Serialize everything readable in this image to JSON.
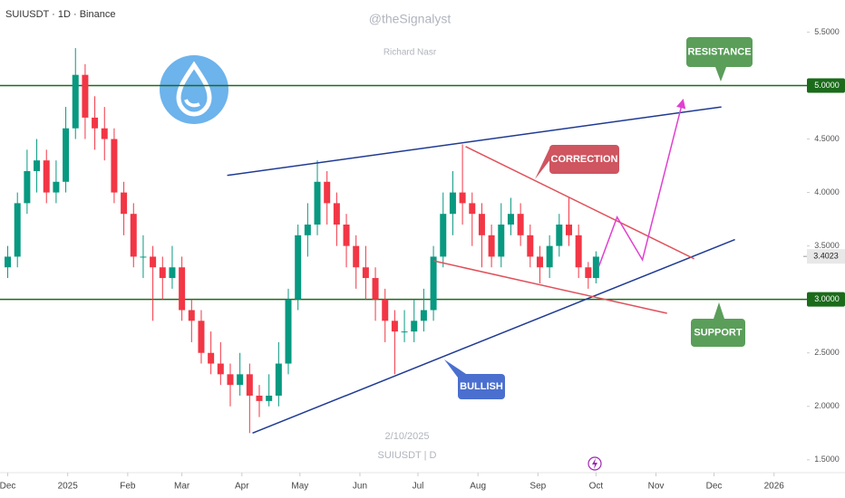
{
  "chart_data": {
    "type": "candlestick",
    "title": "SUIUSDT · 1D · Binance",
    "watermark": {
      "author": "@theSignalyst",
      "name": "Richard Nasr",
      "date": "2/10/2025",
      "symbol": "SUIUSDT | D"
    },
    "x": [
      0,
      5,
      10,
      15,
      20,
      25,
      30,
      35,
      40,
      45,
      50,
      55,
      60,
      65,
      70,
      75,
      80,
      85,
      90,
      95,
      100,
      105,
      110,
      115,
      120,
      125,
      130,
      135,
      140,
      145,
      150,
      155,
      160,
      165,
      170,
      175,
      180,
      185,
      190,
      195,
      200,
      205,
      210,
      215,
      220,
      225,
      230,
      235,
      240,
      245,
      250,
      255,
      260,
      265,
      270,
      275,
      280,
      285,
      290,
      295,
      300,
      304
    ],
    "candles": [
      [
        3.3,
        3.5,
        3.2,
        3.4
      ],
      [
        3.4,
        4.0,
        3.3,
        3.9
      ],
      [
        3.9,
        4.4,
        3.8,
        4.2
      ],
      [
        4.2,
        4.5,
        4.0,
        4.3
      ],
      [
        4.3,
        4.4,
        3.9,
        4.0
      ],
      [
        4.0,
        4.3,
        3.9,
        4.1
      ],
      [
        4.1,
        4.8,
        4.0,
        4.6
      ],
      [
        4.6,
        5.35,
        4.5,
        5.1
      ],
      [
        5.1,
        5.2,
        4.5,
        4.7
      ],
      [
        4.7,
        4.9,
        4.4,
        4.6
      ],
      [
        4.6,
        4.8,
        4.3,
        4.5
      ],
      [
        4.5,
        4.6,
        3.9,
        4.0
      ],
      [
        4.0,
        4.1,
        3.6,
        3.8
      ],
      [
        3.8,
        3.9,
        3.3,
        3.4
      ],
      [
        3.4,
        3.6,
        3.2,
        3.4
      ],
      [
        3.4,
        3.5,
        2.8,
        3.3
      ],
      [
        3.3,
        3.4,
        3.0,
        3.2
      ],
      [
        3.2,
        3.5,
        3.1,
        3.3
      ],
      [
        3.3,
        3.4,
        2.8,
        2.9
      ],
      [
        2.9,
        3.0,
        2.6,
        2.8
      ],
      [
        2.8,
        2.9,
        2.4,
        2.5
      ],
      [
        2.5,
        2.7,
        2.3,
        2.4
      ],
      [
        2.4,
        2.6,
        2.2,
        2.3
      ],
      [
        2.3,
        2.4,
        2.0,
        2.2
      ],
      [
        2.2,
        2.5,
        2.1,
        2.3
      ],
      [
        2.3,
        2.4,
        1.75,
        2.1
      ],
      [
        2.1,
        2.2,
        1.9,
        2.05
      ],
      [
        2.05,
        2.3,
        2.0,
        2.1
      ],
      [
        2.1,
        2.6,
        2.0,
        2.4
      ],
      [
        2.4,
        3.1,
        2.3,
        3.0
      ],
      [
        3.0,
        3.7,
        2.9,
        3.6
      ],
      [
        3.6,
        3.9,
        3.4,
        3.7
      ],
      [
        3.7,
        4.3,
        3.6,
        4.1
      ],
      [
        4.1,
        4.2,
        3.7,
        3.9
      ],
      [
        3.9,
        4.0,
        3.5,
        3.7
      ],
      [
        3.7,
        3.8,
        3.3,
        3.5
      ],
      [
        3.5,
        3.6,
        3.1,
        3.3
      ],
      [
        3.3,
        3.5,
        3.0,
        3.2
      ],
      [
        3.2,
        3.3,
        2.8,
        3.0
      ],
      [
        3.0,
        3.1,
        2.6,
        2.8
      ],
      [
        2.8,
        2.9,
        2.3,
        2.7
      ],
      [
        2.7,
        2.9,
        2.6,
        2.7
      ],
      [
        2.7,
        3.0,
        2.6,
        2.8
      ],
      [
        2.8,
        3.1,
        2.7,
        2.9
      ],
      [
        2.9,
        3.5,
        2.8,
        3.4
      ],
      [
        3.4,
        4.0,
        3.3,
        3.8
      ],
      [
        3.8,
        4.2,
        3.6,
        4.0
      ],
      [
        4.0,
        4.45,
        3.7,
        3.9
      ],
      [
        3.9,
        4.0,
        3.5,
        3.8
      ],
      [
        3.8,
        3.9,
        3.3,
        3.6
      ],
      [
        3.6,
        3.7,
        3.3,
        3.4
      ],
      [
        3.4,
        3.9,
        3.3,
        3.7
      ],
      [
        3.7,
        3.95,
        3.6,
        3.8
      ],
      [
        3.8,
        3.9,
        3.5,
        3.6
      ],
      [
        3.6,
        3.7,
        3.3,
        3.4
      ],
      [
        3.4,
        3.5,
        3.15,
        3.3
      ],
      [
        3.3,
        3.6,
        3.2,
        3.5
      ],
      [
        3.5,
        3.8,
        3.4,
        3.7
      ],
      [
        3.7,
        3.95,
        3.5,
        3.6
      ],
      [
        3.6,
        3.7,
        3.2,
        3.3
      ],
      [
        3.3,
        3.35,
        3.1,
        3.2
      ],
      [
        3.2,
        3.45,
        3.15,
        3.4
      ]
    ],
    "up_color": "#089981",
    "down_color": "#f23645",
    "xlim": [
      -4,
      413
    ],
    "xticks": [
      {
        "value": 0,
        "label": "Dec"
      },
      {
        "value": 31,
        "label": "2025"
      },
      {
        "value": 62,
        "label": "Feb"
      },
      {
        "value": 90,
        "label": "Mar"
      },
      {
        "value": 121,
        "label": "Apr"
      },
      {
        "value": 151,
        "label": "May"
      },
      {
        "value": 182,
        "label": "Jun"
      },
      {
        "value": 212,
        "label": "Jul"
      },
      {
        "value": 243,
        "label": "Aug"
      },
      {
        "value": 274,
        "label": "Sep"
      },
      {
        "value": 304,
        "label": "Oct"
      },
      {
        "value": 335,
        "label": "Nov"
      },
      {
        "value": 365,
        "label": "Dec"
      },
      {
        "value": 396,
        "label": "2026"
      }
    ],
    "ylim": [
      1.38,
      5.8
    ],
    "yticks": [
      {
        "value": 5.5,
        "label": "5.5000"
      },
      {
        "value": 5.0,
        "label": "5.0000"
      },
      {
        "value": 4.5,
        "label": "4.5000"
      },
      {
        "value": 4.0,
        "label": "4.0000"
      },
      {
        "value": 3.5,
        "label": "3.5000"
      },
      {
        "value": 3.0,
        "label": "3.0000"
      },
      {
        "value": 2.5,
        "label": "2.5000"
      },
      {
        "value": 2.0,
        "label": "2.0000"
      },
      {
        "value": 1.5,
        "label": "1.5000"
      }
    ],
    "last_price": {
      "value": 3.4023,
      "label": "3.4023"
    },
    "hlines": [
      {
        "value": 5.0,
        "color": "#1b6b1b"
      },
      {
        "value": 3.0,
        "color": "#1b6b1b"
      }
    ],
    "trendlines": [
      {
        "color": "#1f3a93",
        "points": [
          [
            113.4,
            4.16
          ],
          [
            368.8,
            4.8
          ]
        ]
      },
      {
        "color": "#1f3a93",
        "points": [
          [
            126.5,
            1.75
          ],
          [
            375.8,
            3.56
          ]
        ]
      },
      {
        "color": "#e0505a",
        "points": [
          [
            236.6,
            4.43
          ],
          [
            354.7,
            3.38
          ]
        ]
      },
      {
        "color": "#e0505a",
        "points": [
          [
            220.2,
            3.36
          ],
          [
            340.7,
            2.87
          ]
        ]
      }
    ],
    "projection": {
      "color": "#e040d0",
      "x": [
        305.5,
        314.9,
        328,
        348.9
      ],
      "y": [
        3.31,
        3.77,
        3.37,
        4.86
      ]
    },
    "annotations": [
      {
        "text": "RESISTANCE",
        "color": "#5a9e5a"
      },
      {
        "text": "CORRECTION",
        "color": "#cf5560"
      },
      {
        "text": "SUPPORT",
        "color": "#5a9e5a"
      },
      {
        "text": "BULLISH",
        "color": "#4a6fcf"
      }
    ]
  }
}
